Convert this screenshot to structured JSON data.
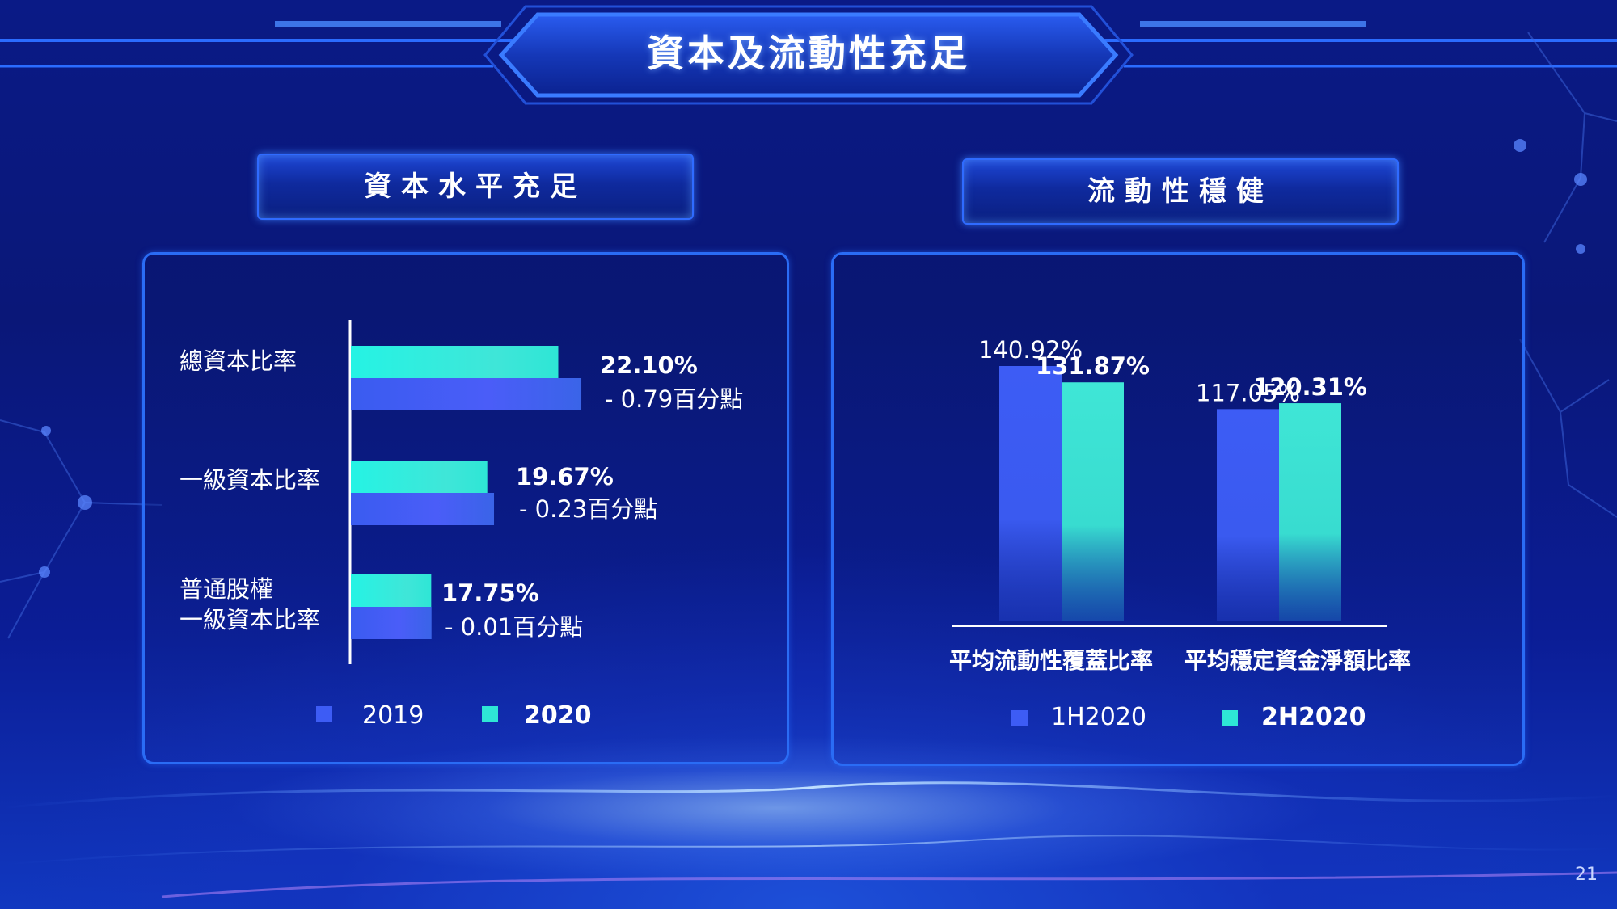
{
  "slide": {
    "title": "資本及流動性充足",
    "page_number": "21"
  },
  "left_section": {
    "header": "資本水平充足",
    "legend": [
      "2019",
      "2020"
    ]
  },
  "right_section": {
    "header": "流動性穩健",
    "legend": [
      "1H2020",
      "2H2020"
    ]
  },
  "colors": {
    "series_a": "#3d5cf5",
    "series_b": "#2ee6d6",
    "panel_border": "#2a6cf5"
  },
  "chart_data": [
    {
      "type": "bar",
      "orientation": "horizontal",
      "categories": [
        "總資本比率",
        "一級資本比率",
        "普通股權\n一級資本比率"
      ],
      "series": [
        {
          "name": "2019",
          "values": [
            22.89,
            19.9,
            17.76
          ]
        },
        {
          "name": "2020",
          "values": [
            22.1,
            19.67,
            17.75
          ]
        }
      ],
      "value_labels": [
        "22.10%",
        "19.67%",
        "17.75%"
      ],
      "delta_labels": [
        "- 0.79百分點",
        "- 0.23百分點",
        "- 0.01百分點"
      ],
      "xlim": [
        15.0,
        23.0
      ]
    },
    {
      "type": "bar",
      "orientation": "vertical",
      "categories": [
        "平均流動性覆蓋比率",
        "平均穩定資金淨額比率"
      ],
      "series": [
        {
          "name": "1H2020",
          "values": [
            140.92,
            117.05
          ],
          "labels": [
            "140.92%",
            "117.05%"
          ]
        },
        {
          "name": "2H2020",
          "values": [
            131.87,
            120.31
          ],
          "labels": [
            "131.87%",
            "120.31%"
          ]
        }
      ],
      "ylim": [
        0,
        140.92
      ]
    }
  ]
}
